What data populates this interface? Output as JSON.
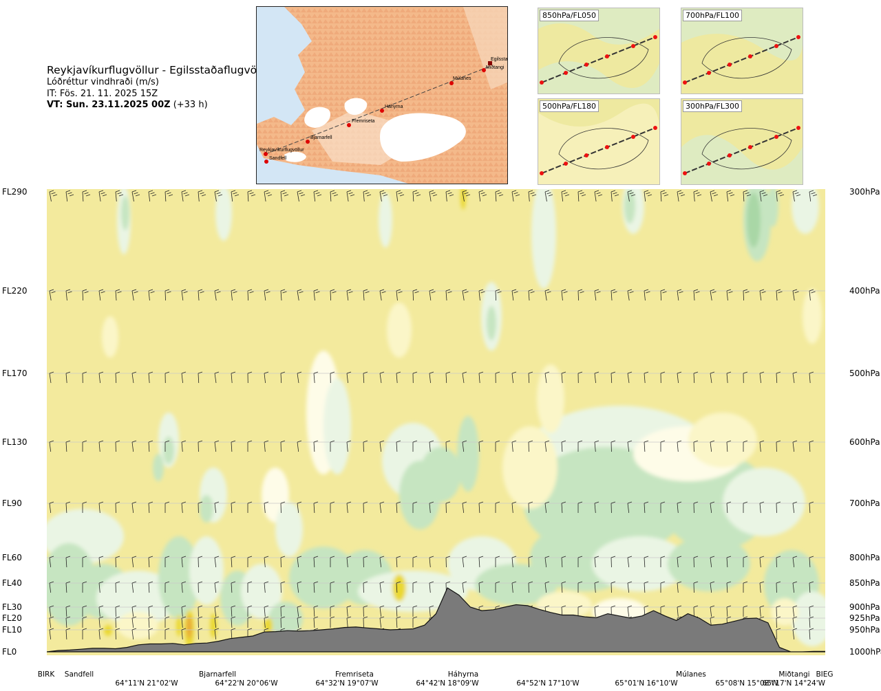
{
  "header": {
    "title": "Reykjavíkurflugvöllur - Egilsstaðaflugvöllur",
    "subtitle": "Lóðréttur vindhraði (m/s)",
    "issue_time": "IT: Fös. 21. 11. 2025 15Z",
    "valid_time_bold": "VT: Sun. 23.11.2025 00Z",
    "valid_time_suffix": " (+33 h)"
  },
  "route_map": {
    "points": [
      "Reykjavíkurflugvöllur",
      "Sandfell",
      "Bjarnarfell",
      "Fremriseta",
      "Háhyrna",
      "Múlanes",
      "Miðtangi",
      "Egilsstaðir"
    ]
  },
  "mini_maps": [
    {
      "label": "850hPa/FL050"
    },
    {
      "label": "700hPa/FL100"
    },
    {
      "label": "500hPa/FL180"
    },
    {
      "label": "300hPa/FL300"
    }
  ],
  "colors": {
    "strong_down": "#f3ea9d",
    "weak_down": "#fbf6c8",
    "neutral": "#fefce8",
    "weak_up": "#eaf5e4",
    "strong_up": "#c6e5c1",
    "very_strong_up": "#a9d7a6",
    "hot_core": "#ead832",
    "hotter_core": "#e9a83a",
    "terrain": "#7a7a7a",
    "terrain_edge": "#111111"
  },
  "chart_data": {
    "type": "heatmap",
    "title": "Lóðréttur vindhraði (m/s)",
    "y_levels": [
      {
        "fl": "FL290",
        "hpa": "300hPa"
      },
      {
        "fl": "FL220",
        "hpa": "400hPa"
      },
      {
        "fl": "FL170",
        "hpa": "500hPa"
      },
      {
        "fl": "FL130",
        "hpa": "600hPa"
      },
      {
        "fl": "FL90",
        "hpa": "700hPa"
      },
      {
        "fl": "FL60",
        "hpa": "800hPa"
      },
      {
        "fl": "FL40",
        "hpa": "850hPa"
      },
      {
        "fl": "FL30",
        "hpa": "900hPa"
      },
      {
        "fl": "FL20",
        "hpa": "925hPa"
      },
      {
        "fl": "FL10",
        "hpa": "950hPa"
      },
      {
        "fl": "FL0",
        "hpa": "1000hPa"
      }
    ],
    "locations": [
      "BIRK",
      "Sandfell",
      "Bjarnarfell",
      "Fremriseta",
      "Háhyrna",
      "Múlanes",
      "Miðtangi",
      "BIEG"
    ],
    "coordinates": [
      "64°11'N 21°02'W",
      "64°22'N 20°06'W",
      "64°32'N 19°07'W",
      "64°42'N 18°09'W",
      "64°52'N 17°10'W",
      "65°01'N 16°10'W",
      "65°08'N 15°08'W",
      "65°17'N 14°24'W"
    ],
    "terrain_profile_pressure_hpa": [
      1000,
      997,
      996,
      994,
      992,
      992,
      993,
      990,
      984,
      982,
      982,
      981,
      984,
      981,
      980,
      976,
      970,
      967,
      964,
      955,
      954,
      952,
      953,
      952,
      950,
      948,
      945,
      944,
      946,
      948,
      950,
      949,
      948,
      940,
      915,
      860,
      875,
      900,
      908,
      906,
      900,
      895,
      897,
      905,
      912,
      918,
      918,
      922,
      924,
      915,
      920,
      925,
      920,
      908,
      920,
      930,
      915,
      925,
      940,
      938,
      932,
      926,
      925,
      935,
      990,
      1000,
      1000,
      999,
      999
    ],
    "grid": true,
    "legend": "none"
  }
}
